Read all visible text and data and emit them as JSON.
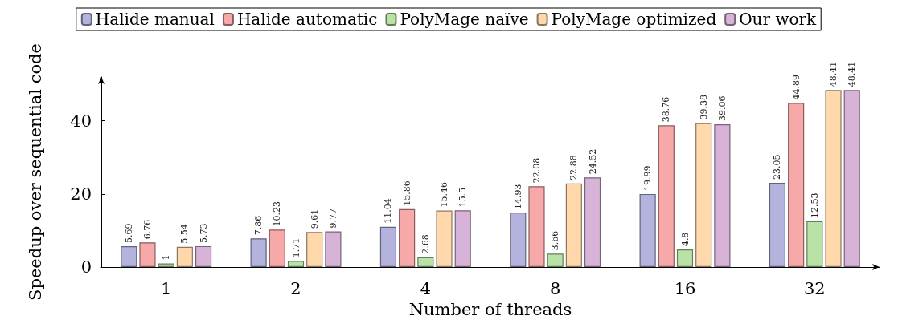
{
  "chart_data": {
    "type": "bar",
    "xlabel": "Number of threads",
    "ylabel": "Speedup over sequential code",
    "categories": [
      "1",
      "2",
      "4",
      "8",
      "16",
      "32"
    ],
    "series": [
      {
        "name": "Halide manual",
        "color": "#b3b3de",
        "values": [
          5.69,
          7.86,
          11.04,
          14.93,
          19.99,
          23.05
        ]
      },
      {
        "name": "Halide automatic",
        "color": "#f7a8a8",
        "values": [
          6.76,
          10.23,
          15.86,
          22.08,
          38.76,
          44.89
        ]
      },
      {
        "name": "PolyMage naïve",
        "color": "#b8e2a6",
        "values": [
          1,
          1.71,
          2.68,
          3.66,
          4.8,
          12.53
        ]
      },
      {
        "name": "PolyMage optimized",
        "color": "#ffd8ab",
        "values": [
          5.54,
          9.61,
          15.46,
          22.88,
          39.38,
          48.41
        ]
      },
      {
        "name": "Our work",
        "color": "#d8b3d8",
        "values": [
          5.73,
          9.77,
          15.5,
          24.52,
          39.06,
          48.41
        ]
      }
    ],
    "ylim": [
      0,
      52
    ],
    "yticks": [
      0,
      20,
      40
    ],
    "data_labels": true,
    "legend": "top",
    "grid": false
  }
}
